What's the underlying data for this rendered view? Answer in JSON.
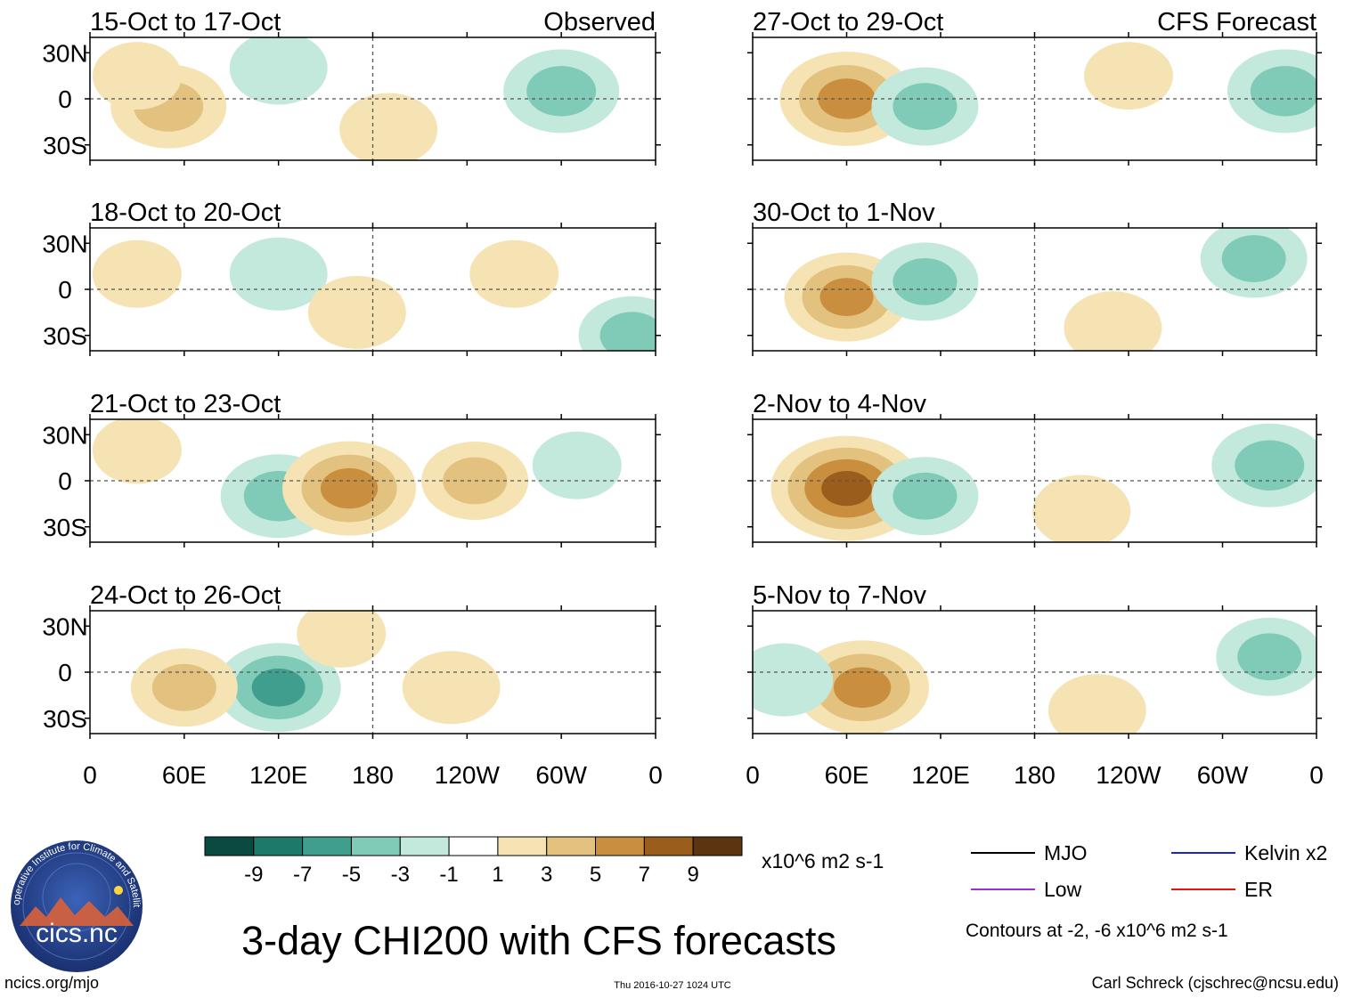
{
  "chart_data": {
    "type": "heatmap",
    "title": "3-day CHI200 with CFS forecasts",
    "variable": "CHI200 (200-hPa velocity potential) anomaly",
    "units": "x10^6 m2 s-1",
    "source_label": "ncics.org/mjo",
    "timestamp": "Thu 2016-10-27 1024 UTC",
    "author": "Carl Schreck (cjschrec@ncsu.edu)",
    "logo_text": "cics.nc",
    "logo_ring_text": "Cooperative Institute for Climate and Satellites",
    "x_axis_ticks": [
      "0",
      "60E",
      "120E",
      "180",
      "120W",
      "60W",
      "0"
    ],
    "y_axis_ticks": [
      "30N",
      "0",
      "30S"
    ],
    "colorbar": {
      "ticks": [
        "-9",
        "-7",
        "-5",
        "-3",
        "-1",
        "1",
        "3",
        "5",
        "7",
        "9"
      ],
      "colors": [
        "#0b4a40",
        "#1d7a6a",
        "#3f9e8e",
        "#7fcbb8",
        "#c3e8dc",
        "#ffffff",
        "#f6e3b4",
        "#e2c27e",
        "#c98f3e",
        "#9a5d1b",
        "#5a3510"
      ]
    },
    "column_labels": {
      "left": "Observed",
      "right": "CFS Forecast"
    },
    "panels_observed": [
      {
        "period": "15-Oct to 17-Oct",
        "anomalies": [
          {
            "lon": 50,
            "lat": -5,
            "val": 5
          },
          {
            "lon": 30,
            "lat": 15,
            "val": 2
          },
          {
            "lon": 120,
            "lat": 20,
            "val": -3
          },
          {
            "lon": 300,
            "lat": 5,
            "val": -5
          },
          {
            "lon": 190,
            "lat": -20,
            "val": 3
          }
        ]
      },
      {
        "period": "18-Oct to 20-Oct",
        "anomalies": [
          {
            "lon": 30,
            "lat": 10,
            "val": 2
          },
          {
            "lon": 120,
            "lat": 10,
            "val": -3
          },
          {
            "lon": 170,
            "lat": -15,
            "val": 3
          },
          {
            "lon": 270,
            "lat": 10,
            "val": 2
          },
          {
            "lon": 345,
            "lat": -30,
            "val": -4
          }
        ]
      },
      {
        "period": "21-Oct to 23-Oct",
        "anomalies": [
          {
            "lon": 120,
            "lat": -10,
            "val": -5
          },
          {
            "lon": 165,
            "lat": -5,
            "val": 7
          },
          {
            "lon": 245,
            "lat": 0,
            "val": 4
          },
          {
            "lon": 310,
            "lat": 10,
            "val": -2
          },
          {
            "lon": 30,
            "lat": 20,
            "val": 2
          }
        ]
      },
      {
        "period": "24-Oct to 26-Oct",
        "anomalies": [
          {
            "lon": 120,
            "lat": -10,
            "val": -6
          },
          {
            "lon": 60,
            "lat": -10,
            "val": 4
          },
          {
            "lon": 230,
            "lat": -10,
            "val": 3
          },
          {
            "lon": 160,
            "lat": 25,
            "val": 2
          }
        ]
      }
    ],
    "panels_forecast": [
      {
        "period": "27-Oct to 29-Oct",
        "anomalies": [
          {
            "lon": 60,
            "lat": 0,
            "val": 7
          },
          {
            "lon": 110,
            "lat": -5,
            "val": -4
          },
          {
            "lon": 340,
            "lat": 5,
            "val": -5
          },
          {
            "lon": 240,
            "lat": 15,
            "val": 2
          }
        ]
      },
      {
        "period": "30-Oct to 1-Nov",
        "anomalies": [
          {
            "lon": 60,
            "lat": -5,
            "val": 6
          },
          {
            "lon": 110,
            "lat": 5,
            "val": -4
          },
          {
            "lon": 320,
            "lat": 20,
            "val": -4
          },
          {
            "lon": 230,
            "lat": -25,
            "val": 3
          }
        ]
      },
      {
        "period": "2-Nov to 4-Nov",
        "anomalies": [
          {
            "lon": 60,
            "lat": -5,
            "val": 9
          },
          {
            "lon": 110,
            "lat": -10,
            "val": -4
          },
          {
            "lon": 330,
            "lat": 10,
            "val": -5
          },
          {
            "lon": 210,
            "lat": -20,
            "val": 3
          }
        ]
      },
      {
        "period": "5-Nov to 7-Nov",
        "anomalies": [
          {
            "lon": 70,
            "lat": -10,
            "val": 7
          },
          {
            "lon": 20,
            "lat": -5,
            "val": -3
          },
          {
            "lon": 330,
            "lat": 10,
            "val": -4
          },
          {
            "lon": 220,
            "lat": -25,
            "val": 3
          }
        ]
      }
    ],
    "legend": [
      {
        "label": "MJO",
        "color": "#000000"
      },
      {
        "label": "Kelvin x2",
        "color": "#1b22e0"
      },
      {
        "label": "Low",
        "color": "#9b30d9"
      },
      {
        "label": "ER",
        "color": "#e8140c"
      }
    ],
    "contour_note": "Contours at -2, -6 x10^6 m2 s-1"
  }
}
